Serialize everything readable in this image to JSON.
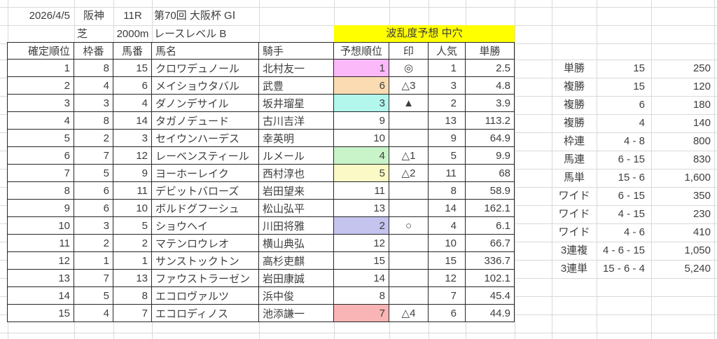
{
  "sheet": {
    "race_header": {
      "date": "2026/4/5",
      "venue": "阪神",
      "race_number": "11R",
      "race_title": "第70回 大阪杯 GⅠ",
      "surface": "芝",
      "distance": "2000m",
      "race_level": "レースレベル B",
      "banner": "波乱度予想 中穴"
    },
    "colors": {
      "banner_bg": "#ffff00",
      "grid_line": "#d9d9d9",
      "table_border": "#262626",
      "pred_pink": "#fcb9fa",
      "pred_peach": "#fbdcb2",
      "pred_cyan": "#b2f6ec",
      "pred_green": "#c9f3c9",
      "pred_yellow": "#fbfac6",
      "pred_lavender": "#c5c4ef",
      "pred_salmon": "#f9b5b5"
    },
    "table": {
      "headers": {
        "pos": "確定順位",
        "waku": "枠番",
        "uma": "馬番",
        "name": "馬名",
        "jockey": "騎手",
        "pred": "予想順位",
        "mark": "印",
        "pop": "人気",
        "odds": "単勝"
      },
      "rows": [
        {
          "pos": "1",
          "waku": "8",
          "uma": "15",
          "name": "クロワデュノール",
          "jockey": "北村友一",
          "pred": "1",
          "mark": "◎",
          "pop": "1",
          "odds": "2.5",
          "pred_bg": "#fcb9fa"
        },
        {
          "pos": "2",
          "waku": "4",
          "uma": "6",
          "name": "メイショウタバル",
          "jockey": "武豊",
          "pred": "6",
          "mark": "△3",
          "pop": "3",
          "odds": "4.8",
          "pred_bg": "#fbdcb2"
        },
        {
          "pos": "3",
          "waku": "3",
          "uma": "4",
          "name": "ダノンデサイル",
          "jockey": "坂井瑠星",
          "pred": "3",
          "mark": "▲",
          "pop": "2",
          "odds": "3.9",
          "pred_bg": "#b2f6ec"
        },
        {
          "pos": "4",
          "waku": "8",
          "uma": "14",
          "name": "タガノデュード",
          "jockey": "古川吉洋",
          "pred": "9",
          "mark": "",
          "pop": "13",
          "odds": "113.2",
          "pred_bg": ""
        },
        {
          "pos": "5",
          "waku": "2",
          "uma": "3",
          "name": "セイウンハーデス",
          "jockey": "幸英明",
          "pred": "10",
          "mark": "",
          "pop": "9",
          "odds": "64.9",
          "pred_bg": ""
        },
        {
          "pos": "6",
          "waku": "7",
          "uma": "12",
          "name": "レーベンスティール",
          "jockey": "ルメール",
          "pred": "4",
          "mark": "△1",
          "pop": "5",
          "odds": "9.9",
          "pred_bg": "#c9f3c9"
        },
        {
          "pos": "7",
          "waku": "5",
          "uma": "9",
          "name": "ヨーホーレイク",
          "jockey": "西村淳也",
          "pred": "5",
          "mark": "△2",
          "pop": "11",
          "odds": "68",
          "pred_bg": "#fbfac6"
        },
        {
          "pos": "8",
          "waku": "6",
          "uma": "11",
          "name": "デビットバローズ",
          "jockey": "岩田望来",
          "pred": "11",
          "mark": "",
          "pop": "8",
          "odds": "58.9",
          "pred_bg": ""
        },
        {
          "pos": "9",
          "waku": "6",
          "uma": "10",
          "name": "ボルドグフーシュ",
          "jockey": "松山弘平",
          "pred": "13",
          "mark": "",
          "pop": "14",
          "odds": "162.1",
          "pred_bg": ""
        },
        {
          "pos": "10",
          "waku": "3",
          "uma": "5",
          "name": "ショウヘイ",
          "jockey": "川田将雅",
          "pred": "2",
          "mark": "○",
          "pop": "4",
          "odds": "6.1",
          "pred_bg": "#c5c4ef"
        },
        {
          "pos": "11",
          "waku": "2",
          "uma": "2",
          "name": "マテンロウレオ",
          "jockey": "横山典弘",
          "pred": "12",
          "mark": "",
          "pop": "10",
          "odds": "66.7",
          "pred_bg": ""
        },
        {
          "pos": "12",
          "waku": "1",
          "uma": "1",
          "name": "サンストックトン",
          "jockey": "高杉吏麒",
          "pred": "15",
          "mark": "",
          "pop": "15",
          "odds": "336.7",
          "pred_bg": ""
        },
        {
          "pos": "13",
          "waku": "7",
          "uma": "13",
          "name": "ファウストラーゼン",
          "jockey": "岩田康誠",
          "pred": "14",
          "mark": "",
          "pop": "12",
          "odds": "102.1",
          "pred_bg": ""
        },
        {
          "pos": "14",
          "waku": "5",
          "uma": "8",
          "name": "エコロヴァルツ",
          "jockey": "浜中俊",
          "pred": "8",
          "mark": "",
          "pop": "7",
          "odds": "45.4",
          "pred_bg": ""
        },
        {
          "pos": "15",
          "waku": "4",
          "uma": "7",
          "name": "エコロディノス",
          "jockey": "池添謙一",
          "pred": "7",
          "mark": "△4",
          "pop": "6",
          "odds": "44.9",
          "pred_bg": "#f9b5b5"
        }
      ]
    },
    "payouts": {
      "rows": [
        {
          "type": "単勝",
          "combination": "15",
          "payout": "250"
        },
        {
          "type": "複勝",
          "combination": "15",
          "payout": "120"
        },
        {
          "type": "複勝",
          "combination": "6",
          "payout": "180"
        },
        {
          "type": "複勝",
          "combination": "4",
          "payout": "140"
        },
        {
          "type": "枠連",
          "combination": "4 - 8",
          "payout": "800"
        },
        {
          "type": "馬連",
          "combination": "6 - 15",
          "payout": "830"
        },
        {
          "type": "馬単",
          "combination": "15 - 6",
          "payout": "1,600"
        },
        {
          "type": "ワイド",
          "combination": "6 - 15",
          "payout": "350"
        },
        {
          "type": "ワイド",
          "combination": "4 - 15",
          "payout": "230"
        },
        {
          "type": "ワイド",
          "combination": "4 - 6",
          "payout": "410"
        },
        {
          "type": "3連複",
          "combination": "4 - 6 - 15",
          "payout": "1,050"
        },
        {
          "type": "3連単",
          "combination": "15 - 6 - 4",
          "payout": "5,240"
        }
      ]
    }
  }
}
